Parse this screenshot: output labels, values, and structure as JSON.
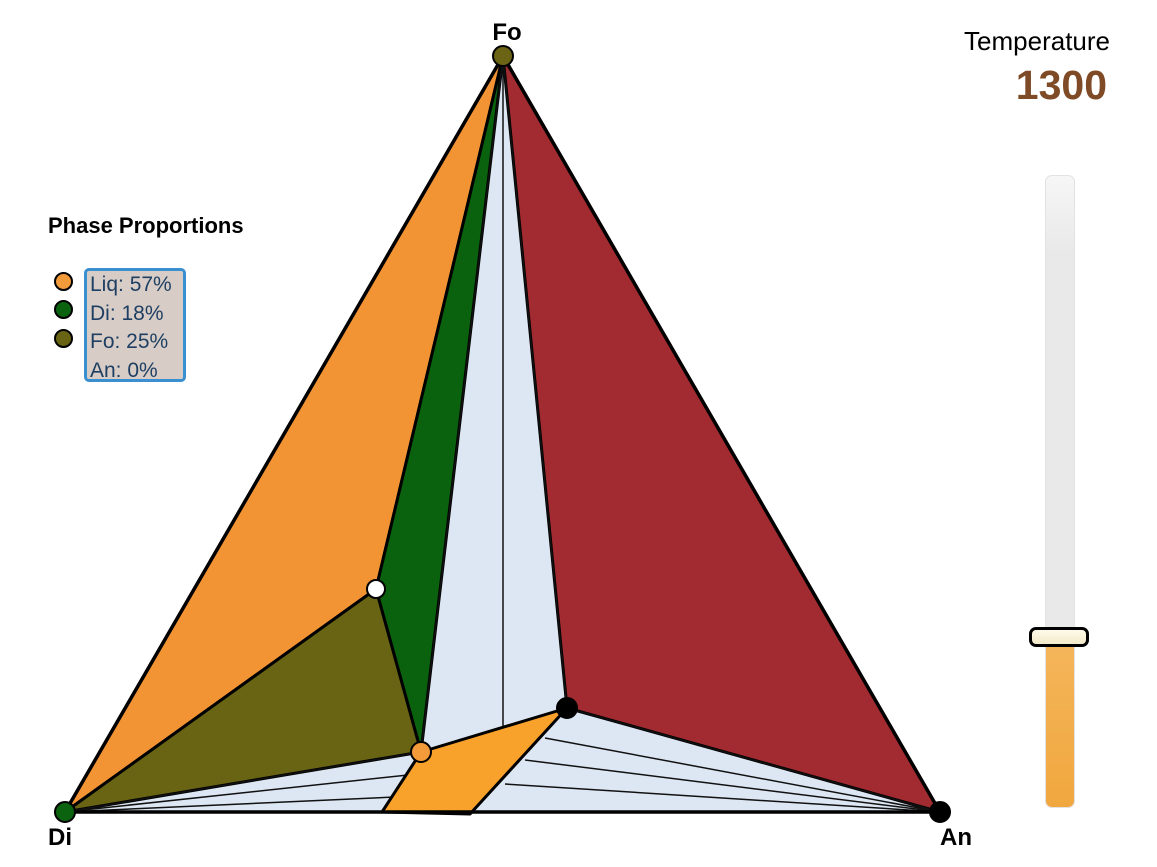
{
  "diagram": {
    "vertices": {
      "top": "Fo",
      "bottom_left": "Di",
      "bottom_right": "An"
    },
    "colors": {
      "liq_region": "#f39434",
      "di_region": "#0a620f",
      "fo_region": "#686414",
      "an_region": "#a12b30",
      "tie_field": "#dde7f3",
      "liquid_parallelogram": "#f9a22b"
    }
  },
  "phase_proportions": {
    "title": "Phase Proportions",
    "items": [
      {
        "label": "Liq: 57%",
        "color": "#f39a3a"
      },
      {
        "label": "Di: 18%",
        "color": "#0b620f"
      },
      {
        "label": "Fo: 25%",
        "color": "#686414"
      },
      {
        "label": "An: 0%",
        "color": ""
      }
    ]
  },
  "temperature": {
    "label": "Temperature",
    "value": "1300",
    "slider_level": 0.27
  }
}
